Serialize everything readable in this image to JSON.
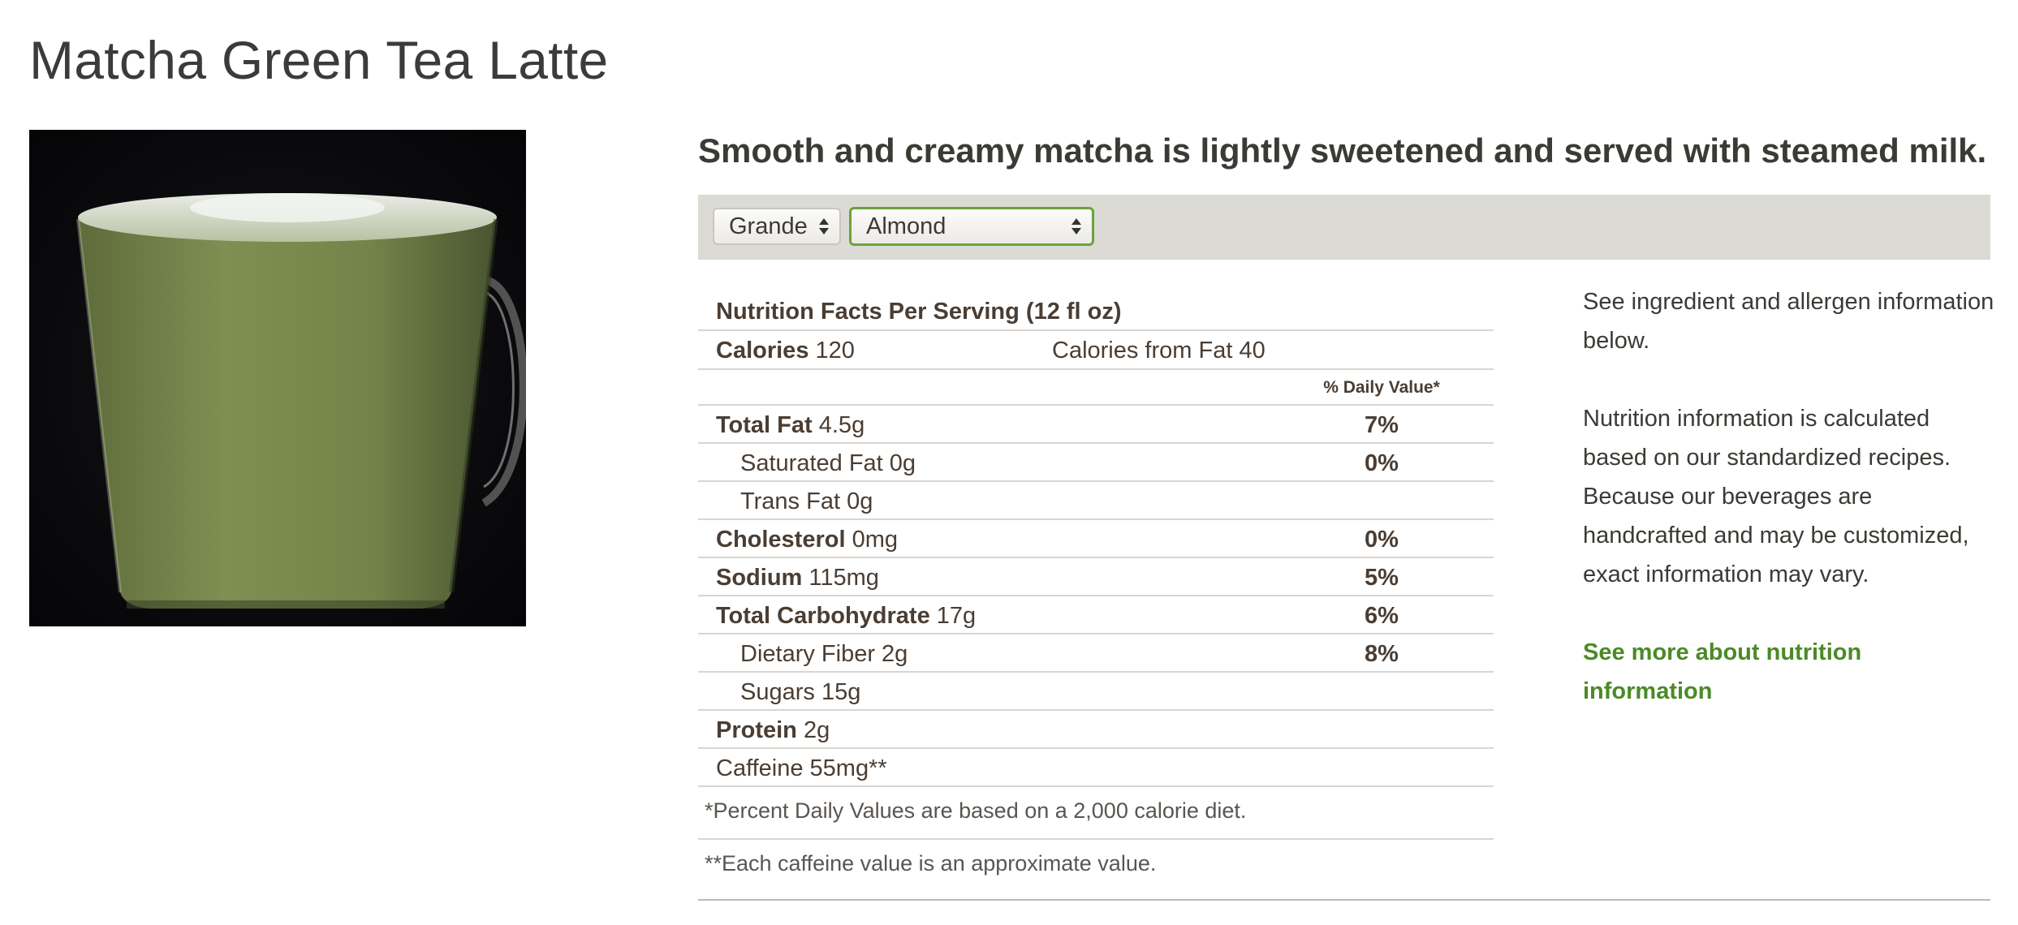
{
  "page": {
    "title": "Matcha Green Tea Latte",
    "tagline": "Smooth and creamy matcha is lightly sweetened and served with steamed milk."
  },
  "options": {
    "size": "Grande",
    "milk": "Almond"
  },
  "nutrition": {
    "header": "Nutrition Facts Per Serving (12 fl oz)",
    "calories_label": "Calories",
    "calories_value": "120",
    "calories_from_fat": "Calories from Fat 40",
    "daily_value_header": "% Daily Value*",
    "rows": [
      {
        "label": "Total Fat",
        "value": "4.5g",
        "pct": "7%"
      },
      {
        "label": "Saturated Fat 0g",
        "value": "",
        "pct": "0%"
      },
      {
        "label": "Trans Fat 0g",
        "value": "",
        "pct": ""
      },
      {
        "label": "Cholesterol",
        "value": "0mg",
        "pct": "0%"
      },
      {
        "label": "Sodium",
        "value": "115mg",
        "pct": "5%"
      },
      {
        "label": "Total Carbohydrate",
        "value": "17g",
        "pct": "6%"
      },
      {
        "label": "Dietary Fiber 2g",
        "value": "",
        "pct": "8%"
      },
      {
        "label": "Sugars 15g",
        "value": "",
        "pct": ""
      },
      {
        "label": "Protein",
        "value": "2g",
        "pct": ""
      },
      {
        "label": "Caffeine 55mg**",
        "value": "",
        "pct": ""
      }
    ],
    "footnote_dv": "*Percent Daily Values are based on a 2,000 calorie diet.",
    "footnote_caffeine": "**Each caffeine value is an approximate value."
  },
  "aside": {
    "allergen_note": "See ingredient and allergen information below.",
    "calc_note": "Nutrition information is calculated based on our standardized recipes. Because our beverages are handcrafted and may be customized, exact information may vary.",
    "link": "See more about nutrition information",
    "link_color": "#4b8a26"
  }
}
